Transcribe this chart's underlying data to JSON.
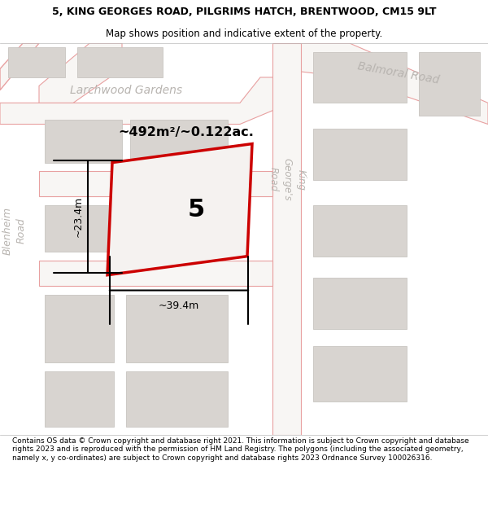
{
  "title": "5, KING GEORGES ROAD, PILGRIMS HATCH, BRENTWOOD, CM15 9LT",
  "subtitle": "Map shows position and indicative extent of the property.",
  "footer": "Contains OS data © Crown copyright and database right 2021. This information is subject to Crown copyright and database rights 2023 and is reproduced with the permission of HM Land Registry. The polygons (including the associated geometry, namely x, y co-ordinates) are subject to Crown copyright and database rights 2023 Ordnance Survey 100026316.",
  "area_text": "~492m²/~0.122ac.",
  "property_number": "5",
  "dim_width": "~39.4m",
  "dim_height": "~23.4m",
  "map_bg": "#ede8e2",
  "road_fill": "#f8f6f4",
  "road_stroke": "#e8a0a0",
  "block_fill": "#d8d4d0",
  "block_stroke": "#c8c4c0",
  "prop_fill": "#f5f2f0",
  "prop_stroke": "#cc0000",
  "label_color": "#b8b4b0",
  "title_size": 9,
  "subtitle_size": 8.5,
  "footer_size": 6.5
}
